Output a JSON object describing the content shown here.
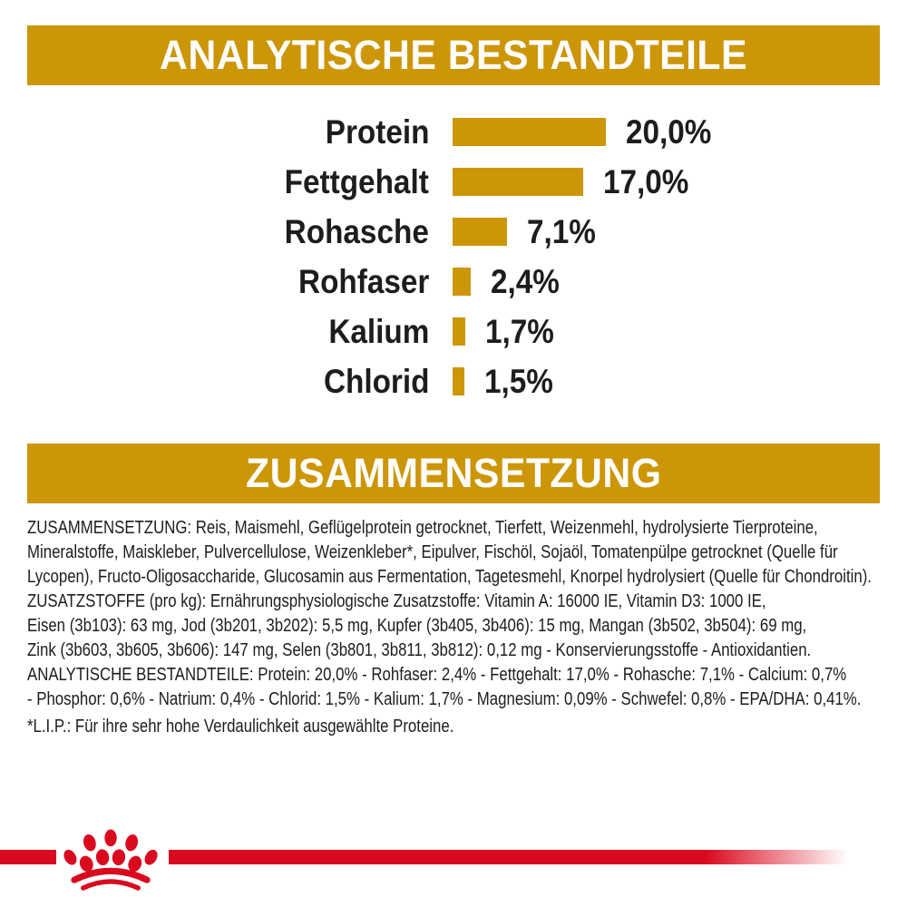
{
  "sections": {
    "analytical": {
      "title": "ANALYTISCHE BESTANDTEILE"
    },
    "composition": {
      "title": "ZUSAMMENSETZUNG"
    }
  },
  "chart_data": {
    "type": "bar",
    "orientation": "horizontal",
    "title": "ANALYTISCHE BESTANDTEILE",
    "categories": [
      "Protein",
      "Fettgehalt",
      "Rohasche",
      "Rohfaser",
      "Kalium",
      "Chlorid"
    ],
    "values": [
      20.0,
      17.0,
      7.1,
      2.4,
      1.7,
      1.5
    ],
    "value_labels": [
      "20,0%",
      "17,0%",
      "7,1%",
      "2,4%",
      "1,7%",
      "1,5%"
    ],
    "unit": "%",
    "xlim": [
      0,
      20
    ],
    "grid": false,
    "legend": false,
    "bar_color": "#cc9608"
  },
  "composition": {
    "lines": [
      "ZUSAMMENSETZUNG: Reis, Maismehl, Geflügelprotein getrocknet, Tierfett, Weizenmehl, hydrolysierte Tierproteine,",
      "Mineralstoffe, Maiskleber, Pulvercellulose, Weizenkleber*, Eipulver, Fischöl, Sojaöl, Tomatenpülpe getrocknet (Quelle für",
      "Lycopen), Fructo-Oligosaccharide, Glucosamin aus Fermentation, Tagetesmehl, Knorpel hydrolysiert (Quelle für Chondroitin).",
      "ZUSATZSTOFFE (pro kg): Ernährungsphysiologische Zusatzstoffe: Vitamin A: 16000 IE, Vitamin D3: 1000 IE,",
      "Eisen (3b103): 63 mg, Jod (3b201, 3b202): 5,5 mg, Kupfer (3b405, 3b406): 15 mg, Mangan (3b502, 3b504): 69 mg,",
      "Zink (3b603, 3b605, 3b606): 147 mg, Selen (3b801, 3b811, 3b812): 0,12 mg - Konservierungsstoffe - Antioxidantien.",
      "ANALYTISCHE BESTANDTEILE: Protein: 20,0% - Rohfaser: 2,4% - Fettgehalt: 17,0% - Rohasche: 7,1% - Calcium: 0,7%",
      "- Phosphor: 0,6% - Natrium: 0,4% - Chlorid: 1,5% - Kalium: 1,7% - Magnesium: 0,09% - Schwefel: 0,8% - EPA/DHA: 0,41%."
    ],
    "footnote": "*L.I.P.: Für ihre sehr hohe Verdaulichkeit ausgewählte Proteine."
  },
  "footer": {
    "logo": "royal-canin-crown-paw",
    "bar_color": "#da0a1e"
  },
  "colors": {
    "gold": "#cc9608",
    "red": "#da0a1e",
    "text": "#1d1d1b",
    "background": "#ffffff"
  }
}
